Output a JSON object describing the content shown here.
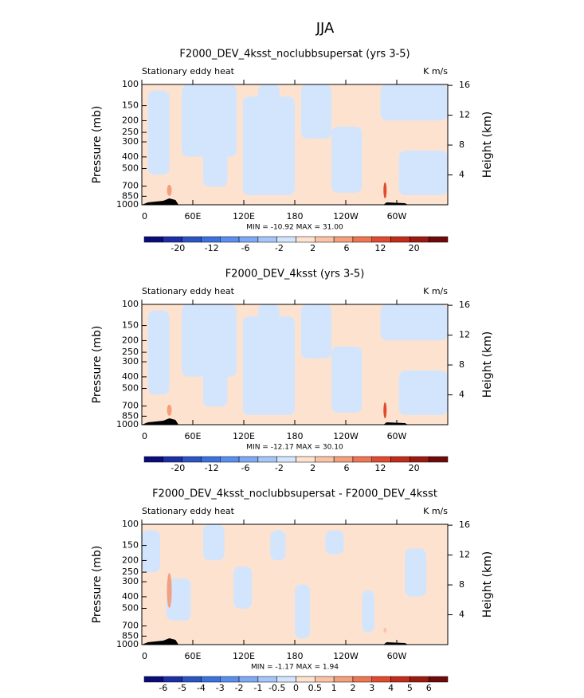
{
  "title": "JJA",
  "y_label": "Pressure (mb)",
  "y2_label": "Height (km)",
  "pressure_ticks": [
    100,
    150,
    200,
    250,
    300,
    400,
    500,
    700,
    850,
    1000
  ],
  "height_ticks": [
    16,
    12,
    8,
    4
  ],
  "xticks": [
    "0",
    "60E",
    "120E",
    "180",
    "120W",
    "60W"
  ],
  "colorbar_colors": [
    "#0b0b7a",
    "#1d2fa6",
    "#2b55c6",
    "#3c72de",
    "#5a8eef",
    "#7fa9f5",
    "#a6c6f9",
    "#d3e5fc",
    "#fde3cf",
    "#f9c3a6",
    "#f4a07d",
    "#ee7653",
    "#e04a2d",
    "#c42c1a",
    "#9c1a10",
    "#6e0a0a"
  ],
  "panels": [
    {
      "title": "F2000_DEV_4ksst_noclubbsupersat (yrs 3-5)",
      "left_label": "Stationary eddy heat",
      "right_label": "K m/s",
      "minmax": "MIN = -10.92   MAX =  31.00",
      "colorbar_labels": [
        "-20",
        "-12",
        "-6",
        "-2",
        "2",
        "6",
        "12",
        "20"
      ]
    },
    {
      "title": "F2000_DEV_4ksst (yrs 3-5)",
      "left_label": "Stationary eddy heat",
      "right_label": "K m/s",
      "minmax": "MIN = -12.17   MAX =  30.10",
      "colorbar_labels": [
        "-20",
        "-12",
        "-6",
        "-2",
        "2",
        "6",
        "12",
        "20"
      ]
    },
    {
      "title": "F2000_DEV_4ksst_noclubbsupersat - F2000_DEV_4ksst",
      "left_label": "Stationary eddy heat",
      "right_label": "K m/s",
      "minmax": "MIN =  -1.17   MAX =   1.94",
      "colorbar_labels": [
        "-6",
        "-5",
        "-4",
        "-3",
        "-2",
        "-1",
        "-0.5",
        "0",
        "0.5",
        "1",
        "2",
        "3",
        "4",
        "5",
        "6"
      ]
    }
  ]
}
